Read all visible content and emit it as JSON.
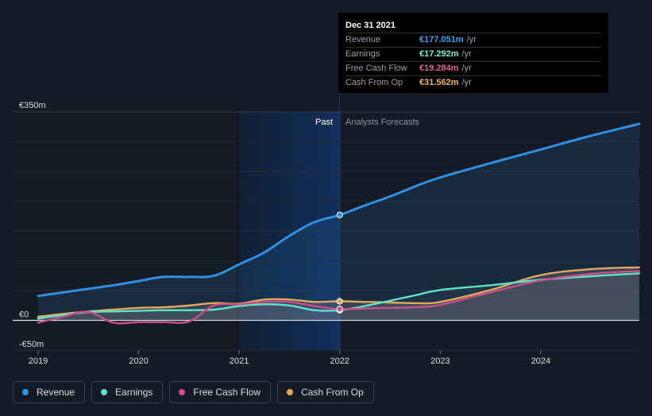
{
  "colors": {
    "revenue": "#2f8fe0",
    "earnings": "#5fe3c8",
    "fcf": "#c94e8a",
    "cfo": "#e3a75b",
    "background": "#151b26"
  },
  "tooltip": {
    "date": "Dec 31 2021",
    "rows": [
      {
        "label": "Revenue",
        "value": "€177.051m",
        "unit": "/yr",
        "color": "#3ea0f0"
      },
      {
        "label": "Earnings",
        "value": "€17.292m",
        "unit": "/yr",
        "color": "#6ff0d4"
      },
      {
        "label": "Free Cash Flow",
        "value": "€19.284m",
        "unit": "/yr",
        "color": "#e0609c"
      },
      {
        "label": "Cash From Op",
        "value": "€31.562m",
        "unit": "/yr",
        "color": "#f0b466"
      }
    ]
  },
  "regions": {
    "past": "Past",
    "forecast": "Analysts Forecasts"
  },
  "legend": [
    {
      "key": "revenue",
      "label": "Revenue",
      "color": "#2f8fe0"
    },
    {
      "key": "earnings",
      "label": "Earnings",
      "color": "#5fe3c8"
    },
    {
      "key": "fcf",
      "label": "Free Cash Flow",
      "color": "#c94e8a"
    },
    {
      "key": "cfo",
      "label": "Cash From Op",
      "color": "#e3a75b"
    }
  ],
  "chart_data": {
    "type": "line",
    "xlim": [
      2019,
      2024.98
    ],
    "ylim": [
      -50,
      350
    ],
    "ytick_labels": [
      {
        "value": 350,
        "label": "€350m"
      },
      {
        "value": 0,
        "label": "€0"
      },
      {
        "value": -50,
        "label": "-€50m"
      }
    ],
    "xtick_labels": [
      {
        "value": 2019,
        "label": "2019"
      },
      {
        "value": 2020,
        "label": "2020"
      },
      {
        "value": 2021,
        "label": "2021"
      },
      {
        "value": 2022,
        "label": "2022"
      },
      {
        "value": 2023,
        "label": "2023"
      },
      {
        "value": 2024,
        "label": "2024"
      }
    ],
    "past_start": 2021,
    "divider": 2022,
    "grid": true,
    "series": [
      {
        "key": "revenue",
        "name": "Revenue",
        "points": [
          [
            2019,
            41
          ],
          [
            2019.25,
            47
          ],
          [
            2019.5,
            53
          ],
          [
            2019.75,
            59
          ],
          [
            2020,
            66
          ],
          [
            2020.25,
            73
          ],
          [
            2020.5,
            73
          ],
          [
            2020.75,
            75
          ],
          [
            2021,
            94
          ],
          [
            2021.25,
            114
          ],
          [
            2021.5,
            142
          ],
          [
            2021.75,
            165
          ],
          [
            2022,
            177
          ],
          [
            2022.25,
            193
          ],
          [
            2022.5,
            208
          ],
          [
            2022.75,
            225
          ],
          [
            2023,
            240
          ],
          [
            2023.5,
            264
          ],
          [
            2024,
            287
          ],
          [
            2024.5,
            310
          ],
          [
            2024.98,
            330
          ]
        ]
      },
      {
        "key": "earnings",
        "name": "Earnings",
        "points": [
          [
            2019,
            3
          ],
          [
            2019.25,
            9
          ],
          [
            2019.5,
            14
          ],
          [
            2019.75,
            15
          ],
          [
            2020,
            16
          ],
          [
            2020.25,
            17
          ],
          [
            2020.5,
            17
          ],
          [
            2020.75,
            18
          ],
          [
            2021,
            24
          ],
          [
            2021.25,
            27
          ],
          [
            2021.5,
            25
          ],
          [
            2021.75,
            17
          ],
          [
            2022,
            17
          ],
          [
            2022.25,
            24
          ],
          [
            2022.5,
            33
          ],
          [
            2022.75,
            42
          ],
          [
            2023,
            51
          ],
          [
            2023.5,
            59
          ],
          [
            2024,
            68
          ],
          [
            2024.5,
            74
          ],
          [
            2024.98,
            79
          ]
        ]
      },
      {
        "key": "fcf",
        "name": "Free Cash Flow",
        "points": [
          [
            2019,
            -4
          ],
          [
            2019.25,
            6
          ],
          [
            2019.5,
            14
          ],
          [
            2019.75,
            -4
          ],
          [
            2020,
            -3
          ],
          [
            2020.25,
            -3
          ],
          [
            2020.5,
            -2
          ],
          [
            2020.75,
            25
          ],
          [
            2021,
            27
          ],
          [
            2021.25,
            31
          ],
          [
            2021.5,
            31
          ],
          [
            2021.75,
            24
          ],
          [
            2022,
            19
          ],
          [
            2022.25,
            20
          ],
          [
            2022.5,
            21
          ],
          [
            2022.75,
            22
          ],
          [
            2023,
            26
          ],
          [
            2023.5,
            47
          ],
          [
            2024,
            67
          ],
          [
            2024.5,
            78
          ],
          [
            2024.98,
            83
          ]
        ]
      },
      {
        "key": "cfo",
        "name": "Cash From Op",
        "points": [
          [
            2019,
            6
          ],
          [
            2019.25,
            11
          ],
          [
            2019.5,
            15
          ],
          [
            2019.75,
            18
          ],
          [
            2020,
            21
          ],
          [
            2020.25,
            22
          ],
          [
            2020.5,
            25
          ],
          [
            2020.75,
            29
          ],
          [
            2021,
            28
          ],
          [
            2021.25,
            35
          ],
          [
            2021.5,
            35
          ],
          [
            2021.75,
            31
          ],
          [
            2022,
            32
          ],
          [
            2022.25,
            31
          ],
          [
            2022.5,
            30
          ],
          [
            2022.75,
            29
          ],
          [
            2023,
            31
          ],
          [
            2023.5,
            51
          ],
          [
            2024,
            76
          ],
          [
            2024.5,
            86
          ],
          [
            2024.98,
            89
          ]
        ]
      }
    ],
    "highlight_x": 2022
  }
}
